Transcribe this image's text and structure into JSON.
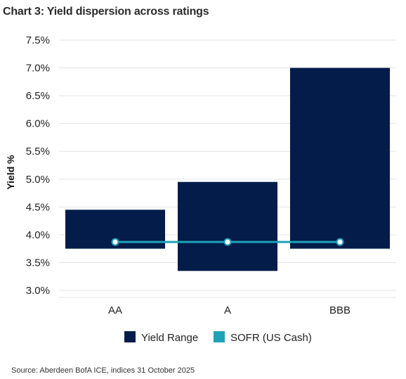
{
  "title": "Chart 3: Yield dispersion across ratings",
  "source": "Source: Aberdeen BofA ICE, indices 31 October 2025",
  "chart_data": {
    "type": "bar",
    "categories": [
      "AA",
      "A",
      "BBB"
    ],
    "series": [
      {
        "name": "Yield Range",
        "type": "floating-bar",
        "color": "#031c4a",
        "low": [
          3.75,
          3.35,
          3.75
        ],
        "high": [
          4.45,
          4.95,
          7.0
        ]
      },
      {
        "name": "SOFR (US Cash)",
        "type": "line",
        "color": "#1fa2b8",
        "values": [
          3.87,
          3.87,
          3.87
        ]
      }
    ],
    "xlabel": "",
    "ylabel": "Yield %",
    "ylim": [
      3.0,
      7.5
    ],
    "yticks": [
      "3.0%",
      "3.5%",
      "4.0%",
      "4.5%",
      "5.0%",
      "5.5%",
      "6.0%",
      "6.5%",
      "7.0%",
      "7.5%"
    ],
    "ytick_values": [
      3.0,
      3.5,
      4.0,
      4.5,
      5.0,
      5.5,
      6.0,
      6.5,
      7.0,
      7.5
    ],
    "grid": true,
    "legend_position": "bottom"
  }
}
